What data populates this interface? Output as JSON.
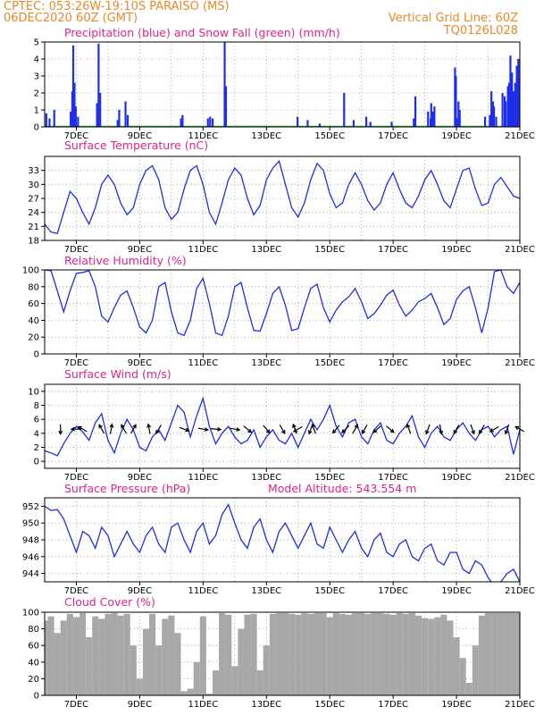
{
  "header": {
    "line1": "CPTEC:  053:26W-19:10S  PARAISO (MS)",
    "line2": "06DEC2020 60Z (GMT)",
    "grid_note": "Vertical Grid Line: 60Z",
    "code": "TQ0126L028"
  },
  "colors": {
    "header": "#e8892a",
    "title": "#e0238a",
    "series_blue": "#1f2ee8",
    "series_green": "#18b418",
    "cloud_gray": "#a8a8a8",
    "arrows": "#000000"
  },
  "chart_data": [
    {
      "type": "bar",
      "title": "Precipitation (blue) and Snow Fall (green) (mm/h)",
      "xticks": [
        "7DEC",
        "9DEC",
        "11DEC",
        "13DEC",
        "15DEC",
        "17DEC",
        "19DEC",
        "21DEC"
      ],
      "xlim": [
        0,
        15
      ],
      "ylim": [
        0,
        5
      ],
      "yticks": [
        "0",
        "1",
        "2",
        "3",
        "4",
        "5"
      ],
      "series": [
        {
          "name": "Precipitation",
          "points": [
            [
              0.05,
              0.8
            ],
            [
              0.15,
              0.5
            ],
            [
              0.3,
              1.0
            ],
            [
              0.82,
              0.9
            ],
            [
              0.87,
              2.1
            ],
            [
              0.9,
              4.8
            ],
            [
              0.94,
              2.6
            ],
            [
              0.98,
              1.2
            ],
            [
              1.05,
              0.6
            ],
            [
              1.65,
              1.4
            ],
            [
              1.7,
              4.9
            ],
            [
              1.75,
              2.0
            ],
            [
              2.3,
              0.4
            ],
            [
              2.35,
              1.0
            ],
            [
              2.55,
              1.5
            ],
            [
              2.62,
              0.7
            ],
            [
              4.3,
              0.5
            ],
            [
              4.35,
              0.7
            ],
            [
              5.15,
              0.5
            ],
            [
              5.22,
              0.6
            ],
            [
              5.3,
              0.5
            ],
            [
              5.68,
              5.0
            ],
            [
              5.72,
              2.4
            ],
            [
              7.98,
              0.6
            ],
            [
              8.3,
              0.4
            ],
            [
              8.68,
              0.2
            ],
            [
              9.45,
              2.0
            ],
            [
              9.75,
              0.4
            ],
            [
              10.15,
              0.6
            ],
            [
              10.28,
              0.3
            ],
            [
              10.95,
              0.3
            ],
            [
              11.65,
              0.5
            ],
            [
              11.7,
              1.8
            ],
            [
              12.1,
              0.9
            ],
            [
              12.18,
              0.5
            ],
            [
              12.2,
              1.4
            ],
            [
              12.25,
              0.9
            ],
            [
              12.3,
              1.2
            ],
            [
              12.95,
              3.5
            ],
            [
              12.98,
              3.0
            ],
            [
              13.02,
              0.5
            ],
            [
              13.06,
              1.5
            ],
            [
              13.1,
              1.0
            ],
            [
              13.9,
              0.6
            ],
            [
              14.05,
              0.7
            ],
            [
              14.1,
              2.1
            ],
            [
              14.15,
              1.5
            ],
            [
              14.18,
              1.2
            ],
            [
              14.25,
              0.6
            ],
            [
              14.45,
              2.0
            ],
            [
              14.52,
              1.8
            ],
            [
              14.55,
              1.5
            ],
            [
              14.62,
              2.4
            ],
            [
              14.66,
              2.6
            ],
            [
              14.7,
              4.2
            ],
            [
              14.75,
              3.2
            ],
            [
              14.8,
              2.1
            ],
            [
              14.85,
              2.6
            ],
            [
              14.9,
              3.6
            ],
            [
              14.95,
              4.0
            ],
            [
              14.98,
              2.9
            ]
          ]
        },
        {
          "name": "Snow Fall",
          "points": []
        }
      ]
    },
    {
      "type": "line",
      "title": "Surface Temperature (nC)",
      "xticks": [
        "7DEC",
        "9DEC",
        "11DEC",
        "13DEC",
        "15DEC",
        "17DEC",
        "19DEC",
        "21DEC"
      ],
      "xlim": [
        0,
        15
      ],
      "ylim": [
        18,
        36
      ],
      "yticks": [
        "18",
        "21",
        "24",
        "27",
        "30",
        "33"
      ],
      "x": [
        0,
        0.2,
        0.4,
        0.6,
        0.8,
        1.0,
        1.2,
        1.4,
        1.6,
        1.8,
        2.0,
        2.2,
        2.4,
        2.6,
        2.8,
        3.0,
        3.2,
        3.4,
        3.6,
        3.8,
        4.0,
        4.2,
        4.4,
        4.6,
        4.8,
        5.0,
        5.2,
        5.4,
        5.6,
        5.8,
        6.0,
        6.2,
        6.4,
        6.6,
        6.8,
        7.0,
        7.2,
        7.4,
        7.6,
        7.8,
        8.0,
        8.2,
        8.4,
        8.6,
        8.8,
        9.0,
        9.2,
        9.4,
        9.6,
        9.8,
        10.0,
        10.2,
        10.4,
        10.6,
        10.8,
        11.0,
        11.2,
        11.4,
        11.6,
        11.8,
        12.0,
        12.2,
        12.4,
        12.6,
        12.8,
        13.0,
        13.2,
        13.4,
        13.6,
        13.8,
        14.0,
        14.2,
        14.4,
        14.6,
        14.8,
        15.0
      ],
      "values": [
        21.5,
        19.8,
        19.5,
        24,
        28.5,
        27,
        24,
        21.5,
        25,
        30,
        32,
        30,
        26,
        23.5,
        25,
        30,
        33,
        34,
        31,
        25,
        22.5,
        24,
        29,
        33,
        34,
        30,
        24,
        21.5,
        26,
        31,
        33.5,
        32,
        27,
        23.5,
        25.5,
        31,
        33.5,
        35,
        30,
        25,
        23,
        26,
        31,
        34.5,
        33,
        28,
        25,
        26,
        30,
        32.5,
        30,
        26.5,
        24.5,
        26,
        30,
        32.5,
        29,
        26,
        25,
        27.5,
        31,
        33,
        30,
        26.5,
        25,
        29,
        33,
        33.5,
        29,
        25.5,
        26,
        30,
        31.5,
        29.5,
        27.5,
        27
      ]
    },
    {
      "type": "line",
      "title": "Relative Humidity (%)",
      "xticks": [
        "7DEC",
        "9DEC",
        "11DEC",
        "13DEC",
        "15DEC",
        "17DEC",
        "19DEC",
        "21DEC"
      ],
      "xlim": [
        0,
        15
      ],
      "ylim": [
        0,
        100
      ],
      "yticks": [
        "0",
        "20",
        "40",
        "60",
        "80",
        "100"
      ],
      "x": [
        0,
        0.2,
        0.4,
        0.6,
        0.8,
        1.0,
        1.2,
        1.4,
        1.6,
        1.8,
        2.0,
        2.2,
        2.4,
        2.6,
        2.8,
        3.0,
        3.2,
        3.4,
        3.6,
        3.8,
        4.0,
        4.2,
        4.4,
        4.6,
        4.8,
        5.0,
        5.2,
        5.4,
        5.6,
        5.8,
        6.0,
        6.2,
        6.4,
        6.6,
        6.8,
        7.0,
        7.2,
        7.4,
        7.6,
        7.8,
        8.0,
        8.2,
        8.4,
        8.6,
        8.8,
        9.0,
        9.2,
        9.4,
        9.6,
        9.8,
        10.0,
        10.2,
        10.4,
        10.6,
        10.8,
        11.0,
        11.2,
        11.4,
        11.6,
        11.8,
        12.0,
        12.2,
        12.4,
        12.6,
        12.8,
        13.0,
        13.2,
        13.4,
        13.6,
        13.8,
        14.0,
        14.2,
        14.4,
        14.6,
        14.8,
        15.0
      ],
      "values": [
        100,
        99,
        75,
        50,
        75,
        96,
        97,
        99,
        80,
        45,
        38,
        55,
        70,
        75,
        55,
        32,
        25,
        40,
        80,
        85,
        50,
        25,
        22,
        40,
        78,
        90,
        60,
        25,
        22,
        45,
        80,
        85,
        55,
        28,
        27,
        48,
        72,
        80,
        58,
        28,
        30,
        55,
        78,
        83,
        55,
        38,
        52,
        62,
        68,
        78,
        62,
        42,
        48,
        58,
        70,
        76,
        58,
        45,
        52,
        62,
        66,
        72,
        55,
        35,
        42,
        65,
        75,
        80,
        55,
        25,
        55,
        98,
        100,
        80,
        72,
        85
      ]
    },
    {
      "type": "line",
      "title": "Surface Wind (m/s)",
      "xticks": [
        "7DEC",
        "9DEC",
        "11DEC",
        "13DEC",
        "15DEC",
        "17DEC",
        "19DEC",
        "21DEC"
      ],
      "xlim": [
        0,
        15
      ],
      "ylim": [
        -1,
        11
      ],
      "yticks": [
        "0",
        "2",
        "4",
        "6",
        "8",
        "10"
      ],
      "x": [
        0,
        0.2,
        0.4,
        0.6,
        0.8,
        1.0,
        1.2,
        1.4,
        1.6,
        1.8,
        2.0,
        2.2,
        2.4,
        2.6,
        2.8,
        3.0,
        3.2,
        3.4,
        3.6,
        3.8,
        4.0,
        4.2,
        4.4,
        4.6,
        4.8,
        5.0,
        5.2,
        5.4,
        5.6,
        5.8,
        6.0,
        6.2,
        6.4,
        6.6,
        6.8,
        7.0,
        7.2,
        7.4,
        7.6,
        7.8,
        8.0,
        8.2,
        8.4,
        8.6,
        8.8,
        9.0,
        9.2,
        9.4,
        9.6,
        9.8,
        10.0,
        10.2,
        10.4,
        10.6,
        10.8,
        11.0,
        11.2,
        11.4,
        11.6,
        11.8,
        12.0,
        12.2,
        12.4,
        12.6,
        12.8,
        13.0,
        13.2,
        13.4,
        13.6,
        13.8,
        14.0,
        14.2,
        14.4,
        14.6,
        14.8,
        15.0
      ],
      "values": [
        1.5,
        1.2,
        0.8,
        2.5,
        4.0,
        5.0,
        4.2,
        3.0,
        5.5,
        6.8,
        3.0,
        1.2,
        4.0,
        6.0,
        4.5,
        2.0,
        1.5,
        3.5,
        4.5,
        3.0,
        5.5,
        8.0,
        7.0,
        3.5,
        6.5,
        9.0,
        5.0,
        2.5,
        4.0,
        5.0,
        3.5,
        2.5,
        3.0,
        4.5,
        2.0,
        3.5,
        4.5,
        3.0,
        2.5,
        4.0,
        2.0,
        4.0,
        6.0,
        4.5,
        6.0,
        8.0,
        5.0,
        3.5,
        5.5,
        6.0,
        3.5,
        2.5,
        4.5,
        5.5,
        3.0,
        2.5,
        4.0,
        5.0,
        6.5,
        3.5,
        2.0,
        4.0,
        5.0,
        3.5,
        3.0,
        4.5,
        5.5,
        4.0,
        3.0,
        4.5,
        5.0,
        3.5,
        4.5,
        5.0,
        1.0,
        4.5
      ]
    },
    {
      "type": "line",
      "title": "Surface Pressure (hPa)",
      "annotation": "Model Altitude: 543.554  m",
      "xticks": [
        "7DEC",
        "9DEC",
        "11DEC",
        "13DEC",
        "15DEC",
        "17DEC",
        "19DEC",
        "21DEC"
      ],
      "xlim": [
        0,
        15
      ],
      "ylim": [
        943,
        953
      ],
      "yticks": [
        "944",
        "946",
        "948",
        "950",
        "952"
      ],
      "x": [
        0,
        0.2,
        0.4,
        0.6,
        0.8,
        1.0,
        1.2,
        1.4,
        1.6,
        1.8,
        2.0,
        2.2,
        2.4,
        2.6,
        2.8,
        3.0,
        3.2,
        3.4,
        3.6,
        3.8,
        4.0,
        4.2,
        4.4,
        4.6,
        4.8,
        5.0,
        5.2,
        5.4,
        5.6,
        5.8,
        6.0,
        6.2,
        6.4,
        6.6,
        6.8,
        7.0,
        7.2,
        7.4,
        7.6,
        7.8,
        8.0,
        8.2,
        8.4,
        8.6,
        8.8,
        9.0,
        9.2,
        9.4,
        9.6,
        9.8,
        10.0,
        10.2,
        10.4,
        10.6,
        10.8,
        11.0,
        11.2,
        11.4,
        11.6,
        11.8,
        12.0,
        12.2,
        12.4,
        12.6,
        12.8,
        13.0,
        13.2,
        13.4,
        13.6,
        13.8,
        14.0,
        14.2,
        14.4,
        14.6,
        14.8,
        15.0
      ],
      "values": [
        952,
        951.5,
        951.6,
        950.5,
        948.5,
        946.5,
        949,
        948.5,
        947,
        949.5,
        948.5,
        946,
        947.5,
        949,
        947.5,
        946.5,
        948.5,
        949.5,
        947.5,
        946.5,
        949.5,
        950,
        948,
        946.5,
        949,
        950,
        947.5,
        948.5,
        951,
        952.2,
        950,
        948,
        947,
        949.5,
        950.5,
        948,
        946.5,
        949,
        950,
        948.5,
        947,
        948.5,
        950,
        947.5,
        947,
        949.5,
        948,
        946.5,
        948,
        949,
        947,
        946,
        948,
        948.8,
        946.5,
        946,
        947.5,
        948,
        946,
        945.5,
        947,
        947.5,
        945.5,
        945,
        946.5,
        946.5,
        944.5,
        944,
        945.5,
        945,
        943.5,
        942.5,
        943,
        944,
        944.5,
        943
      ]
    },
    {
      "type": "bar",
      "title": "Cloud Cover (%)",
      "xticks": [
        "7DEC",
        "9DEC",
        "11DEC",
        "13DEC",
        "15DEC",
        "17DEC",
        "19DEC",
        "21DEC"
      ],
      "xlim": [
        0,
        15
      ],
      "ylim": [
        0,
        100
      ],
      "yticks": [
        "0",
        "20",
        "40",
        "60",
        "80",
        "100"
      ],
      "x": [
        0,
        0.2,
        0.4,
        0.6,
        0.8,
        1.0,
        1.2,
        1.4,
        1.6,
        1.8,
        2.0,
        2.2,
        2.4,
        2.6,
        2.8,
        3.0,
        3.2,
        3.4,
        3.6,
        3.8,
        4.0,
        4.2,
        4.4,
        4.6,
        4.8,
        5.0,
        5.2,
        5.4,
        5.6,
        5.8,
        6.0,
        6.2,
        6.4,
        6.6,
        6.8,
        7.0,
        7.2,
        7.4,
        7.6,
        7.8,
        8.0,
        8.2,
        8.4,
        8.6,
        8.8,
        9.0,
        9.2,
        9.4,
        9.6,
        9.8,
        10.0,
        10.2,
        10.4,
        10.6,
        10.8,
        11.0,
        11.2,
        11.4,
        11.6,
        11.8,
        12.0,
        12.2,
        12.4,
        12.6,
        12.8,
        13.0,
        13.2,
        13.4,
        13.6,
        13.8,
        14.0,
        14.2,
        14.4,
        14.6,
        14.8,
        15.0
      ],
      "values": [
        90,
        95,
        75,
        90,
        98,
        94,
        99,
        70,
        95,
        92,
        98,
        99,
        96,
        98,
        60,
        20,
        80,
        98,
        60,
        92,
        96,
        75,
        5,
        8,
        40,
        95,
        2,
        30,
        99,
        97,
        35,
        80,
        97,
        98,
        30,
        60,
        98,
        99,
        99,
        98,
        97,
        99,
        98,
        99,
        99,
        94,
        99,
        98,
        97,
        99,
        99,
        98,
        99,
        99,
        98,
        97,
        99,
        98,
        99,
        96,
        93,
        92,
        94,
        97,
        90,
        70,
        45,
        15,
        60,
        96,
        99,
        99,
        99,
        99,
        99,
        99
      ]
    }
  ],
  "wind_arrows": [
    [
      0.5,
      180
    ],
    [
      1.0,
      270
    ],
    [
      1.2,
      300
    ],
    [
      1.8,
      330
    ],
    [
      2.1,
      10
    ],
    [
      2.5,
      330
    ],
    [
      2.8,
      30
    ],
    [
      3.3,
      350
    ],
    [
      3.6,
      210
    ],
    [
      4.4,
      110
    ],
    [
      5.0,
      100
    ],
    [
      5.4,
      95
    ],
    [
      6.0,
      100
    ],
    [
      6.4,
      130
    ],
    [
      7.0,
      140
    ],
    [
      7.5,
      150
    ],
    [
      7.9,
      340
    ],
    [
      8.0,
      240
    ],
    [
      8.4,
      200
    ],
    [
      8.5,
      340
    ],
    [
      9.2,
      220
    ],
    [
      9.5,
      225
    ],
    [
      9.8,
      30
    ],
    [
      10.1,
      210
    ],
    [
      10.5,
      230
    ],
    [
      10.9,
      130
    ],
    [
      11.5,
      340
    ],
    [
      12.1,
      200
    ],
    [
      12.5,
      170
    ],
    [
      13.0,
      210
    ],
    [
      13.5,
      160
    ],
    [
      13.8,
      210
    ],
    [
      14.2,
      240
    ],
    [
      14.6,
      200
    ],
    [
      15.0,
      300
    ]
  ]
}
